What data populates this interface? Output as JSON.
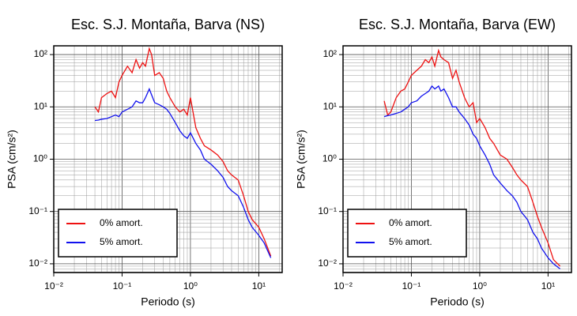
{
  "chart_data": [
    {
      "type": "line",
      "title": "Esc. S.J. Montaña, Barva (NS)",
      "xlabel": "Periodo (s)",
      "ylabel": "PSA (cm/s²)",
      "xscale": "log",
      "yscale": "log",
      "grid": true,
      "legend": "lower left",
      "xlim": [
        0.01,
        22
      ],
      "ylim": [
        0.0068,
        147
      ],
      "xticks": [
        {
          "value": 0.01,
          "label": "10⁻²"
        },
        {
          "value": 0.1,
          "label": "10⁻¹"
        },
        {
          "value": 1,
          "label": "10⁰"
        },
        {
          "value": 10,
          "label": "10¹"
        }
      ],
      "yticks": [
        {
          "value": 0.01,
          "label": "10⁻²"
        },
        {
          "value": 0.1,
          "label": "10⁻¹"
        },
        {
          "value": 1,
          "label": "10⁰"
        },
        {
          "value": 10,
          "label": "10¹"
        },
        {
          "value": 100,
          "label": "10²"
        }
      ],
      "x": [
        0.04,
        0.045,
        0.05,
        0.06,
        0.07,
        0.08,
        0.09,
        0.1,
        0.12,
        0.14,
        0.16,
        0.18,
        0.2,
        0.22,
        0.25,
        0.27,
        0.3,
        0.35,
        0.4,
        0.45,
        0.5,
        0.6,
        0.7,
        0.8,
        0.9,
        1.0,
        1.2,
        1.4,
        1.6,
        2,
        2.5,
        3,
        3.5,
        4,
        5,
        6,
        7,
        8,
        10,
        12,
        15
      ],
      "series": [
        {
          "name": "0% amort.",
          "color": "#ee1111",
          "values": [
            10,
            8,
            15,
            18,
            20,
            15,
            30,
            40,
            60,
            45,
            80,
            55,
            70,
            60,
            130,
            100,
            40,
            45,
            35,
            20,
            15,
            10,
            8,
            9,
            7,
            15,
            4,
            2.5,
            1.8,
            1.5,
            1.2,
            0.9,
            0.6,
            0.5,
            0.4,
            0.2,
            0.1,
            0.07,
            0.05,
            0.03,
            0.014
          ]
        },
        {
          "name": "5% amort.",
          "color": "#1111ee",
          "values": [
            5.5,
            5.6,
            5.8,
            6,
            6.5,
            7,
            6.5,
            8,
            9,
            10,
            13,
            12,
            12,
            15,
            22,
            17,
            12,
            11,
            10,
            9,
            7.5,
            5,
            3.5,
            2.8,
            2.5,
            3.2,
            2,
            1.5,
            1.0,
            0.8,
            0.6,
            0.45,
            0.3,
            0.25,
            0.2,
            0.12,
            0.07,
            0.05,
            0.035,
            0.025,
            0.013
          ]
        }
      ]
    },
    {
      "type": "line",
      "title": "Esc. S.J. Montaña, Barva (EW)",
      "xlabel": "Periodo (s)",
      "ylabel": "PSA (cm/s²)",
      "xscale": "log",
      "yscale": "log",
      "grid": true,
      "legend": "lower left",
      "xlim": [
        0.01,
        22
      ],
      "ylim": [
        0.0068,
        147
      ],
      "xticks": [
        {
          "value": 0.01,
          "label": "10⁻²"
        },
        {
          "value": 0.1,
          "label": "10⁻¹"
        },
        {
          "value": 1,
          "label": "10⁰"
        },
        {
          "value": 10,
          "label": "10¹"
        }
      ],
      "yticks": [
        {
          "value": 0.01,
          "label": "10⁻²"
        },
        {
          "value": 0.1,
          "label": "10⁻¹"
        },
        {
          "value": 1,
          "label": "10⁰"
        },
        {
          "value": 10,
          "label": "10¹"
        },
        {
          "value": 100,
          "label": "10²"
        }
      ],
      "x": [
        0.04,
        0.045,
        0.05,
        0.06,
        0.07,
        0.08,
        0.09,
        0.1,
        0.12,
        0.14,
        0.16,
        0.18,
        0.2,
        0.22,
        0.25,
        0.27,
        0.3,
        0.35,
        0.4,
        0.45,
        0.5,
        0.6,
        0.7,
        0.8,
        0.9,
        1.0,
        1.2,
        1.4,
        1.6,
        2,
        2.5,
        3,
        3.5,
        4,
        5,
        6,
        7,
        8,
        10,
        12,
        15
      ],
      "series": [
        {
          "name": "0% amort.",
          "color": "#ee1111",
          "values": [
            13,
            7,
            8,
            15,
            20,
            22,
            30,
            40,
            50,
            60,
            80,
            70,
            90,
            60,
            120,
            90,
            80,
            70,
            35,
            50,
            30,
            15,
            10,
            12,
            5,
            6,
            4,
            2.5,
            2,
            1.2,
            1.0,
            0.7,
            0.5,
            0.4,
            0.3,
            0.15,
            0.08,
            0.05,
            0.025,
            0.012,
            0.009
          ]
        },
        {
          "name": "5% amort.",
          "color": "#1111ee",
          "values": [
            6.5,
            6.8,
            7,
            7.5,
            8,
            9,
            10,
            12,
            13,
            16,
            18,
            20,
            25,
            22,
            25,
            20,
            22,
            15,
            10,
            10,
            8,
            6,
            4.5,
            3,
            2.5,
            1.8,
            1.2,
            0.8,
            0.5,
            0.35,
            0.25,
            0.2,
            0.15,
            0.1,
            0.07,
            0.04,
            0.03,
            0.02,
            0.013,
            0.01,
            0.008
          ]
        }
      ]
    }
  ]
}
